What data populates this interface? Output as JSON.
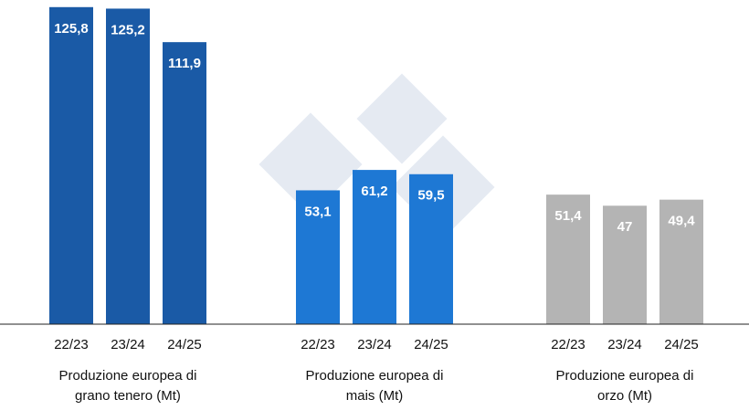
{
  "chart_data": [
    {
      "type": "bar",
      "categories": [
        "22/23",
        "23/24",
        "24/25"
      ],
      "values": [
        125.8,
        125.2,
        111.9
      ],
      "value_labels": [
        "125,8",
        "125,2",
        "111,9"
      ],
      "color": "#1a5aa6",
      "xlabel": [
        "Produzione europea di",
        "grano tenero (Mt)"
      ]
    },
    {
      "type": "bar",
      "categories": [
        "22/23",
        "23/24",
        "24/25"
      ],
      "values": [
        53.1,
        61.2,
        59.5
      ],
      "value_labels": [
        "53,1",
        "61,2",
        "59,5"
      ],
      "color": "#1e78d4",
      "xlabel": [
        "Produzione europea di",
        "mais (Mt)"
      ]
    },
    {
      "type": "bar",
      "categories": [
        "22/23",
        "23/24",
        "24/25"
      ],
      "values": [
        51.4,
        47,
        49.4
      ],
      "value_labels": [
        "51,4",
        "47",
        "49,4"
      ],
      "color": "#b4b4b4",
      "xlabel": [
        "Produzione europea di",
        "orzo (Mt)"
      ]
    }
  ]
}
